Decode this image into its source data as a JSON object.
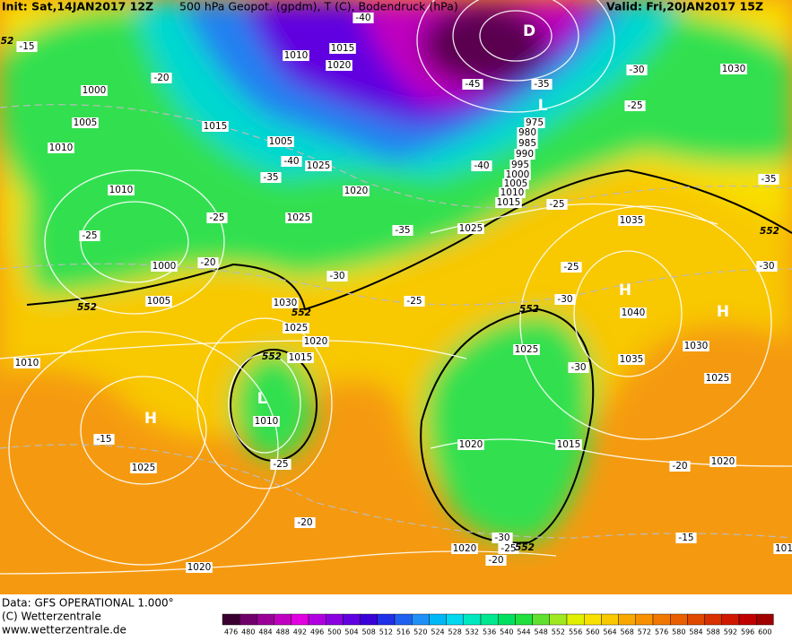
{
  "header": {
    "init": "Init: Sat,14JAN2017 12Z",
    "product": "500 hPa Geopot. (gpdm), T (C), Bodendruck (hPa)",
    "valid": "Valid: Fri,20JAN2017 15Z"
  },
  "footer": {
    "data": "Data: GFS OPERATIONAL 1.000°",
    "copyright": "(C) Wetterzentrale",
    "url": "www.wetterzentrale.de"
  },
  "scale": {
    "labels": [
      476,
      480,
      484,
      488,
      492,
      496,
      500,
      504,
      508,
      512,
      516,
      520,
      524,
      528,
      532,
      536,
      540,
      544,
      548,
      552,
      556,
      560,
      564,
      568,
      572,
      576,
      580,
      584,
      588,
      592,
      596,
      600
    ],
    "colors": [
      "#3a0030",
      "#70006a",
      "#9a0096",
      "#c000c0",
      "#e000e0",
      "#b000e0",
      "#8a00e0",
      "#6000e0",
      "#3a00d8",
      "#2030e8",
      "#2060f0",
      "#2090f8",
      "#00b8f8",
      "#00d8f0",
      "#00e8c0",
      "#00e890",
      "#00e060",
      "#20e040",
      "#60e030",
      "#a0e820",
      "#e0f000",
      "#f8e000",
      "#f8c800",
      "#f8a800",
      "#f89000",
      "#f07800",
      "#e86000",
      "#e04800",
      "#d83000",
      "#d01800",
      "#c00000",
      "#a00000"
    ]
  },
  "map": {
    "isobars": [
      "1000",
      "1005",
      "1010",
      "1010",
      "1015",
      "1010",
      "1015",
      "1020",
      "1005",
      "1025",
      "1020",
      "1025",
      "1000",
      "1005",
      "1030",
      "1025",
      "1020",
      "1015",
      "1010",
      "1010",
      "1025",
      "1020",
      "1025",
      "975",
      "980",
      "985",
      "990",
      "995",
      "1000",
      "1005",
      "1010",
      "1015",
      "1035",
      "1040",
      "1030",
      "1035",
      "1025",
      "1025",
      "1020",
      "1015",
      "1020",
      "1020",
      "1030",
      "101"
    ],
    "temperatures": [
      "-15",
      "-40",
      "-20",
      "-45",
      "-35",
      "-30",
      "-25",
      "-40",
      "-35",
      "-40",
      "-25",
      "-25",
      "-20",
      "-35",
      "-30",
      "-25",
      "-35",
      "-30",
      "-25",
      "-30",
      "-25",
      "-30",
      "-15",
      "-25",
      "-20",
      "-20",
      "-15",
      "-30",
      "-25",
      "-20"
    ],
    "height_552": [
      "52",
      "552",
      "552",
      "552",
      "552",
      "552",
      "552"
    ],
    "centers": [
      "D",
      "L",
      "L",
      "H",
      "H",
      "H"
    ]
  }
}
